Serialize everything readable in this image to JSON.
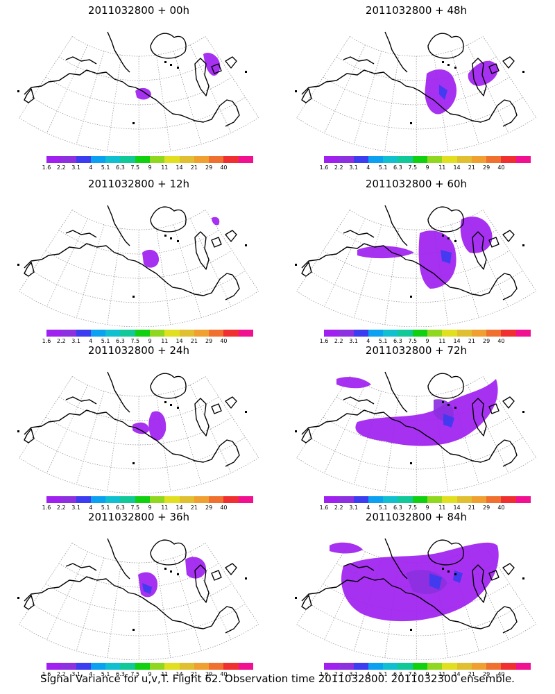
{
  "panels": [
    {
      "title": "2011032800 + 00h"
    },
    {
      "title": "2011032800 + 48h"
    },
    {
      "title": "2011032800 + 12h"
    },
    {
      "title": "2011032800 + 60h"
    },
    {
      "title": "2011032800 + 24h"
    },
    {
      "title": "2011032800 + 72h"
    },
    {
      "title": "2011032800 + 36h"
    },
    {
      "title": "2011032800 + 84h"
    }
  ],
  "colorbar": {
    "labels": [
      "1.6",
      "2.2",
      "3.1",
      "4",
      "5.1",
      "6.3",
      "7.5",
      "9",
      "11",
      "14",
      "21",
      "29",
      "40"
    ],
    "colors": [
      "#a020f0",
      "#8c30e0",
      "#3c3cf0",
      "#0ca0f0",
      "#10c0d0",
      "#10c898",
      "#10d010",
      "#90d820",
      "#e0e020",
      "#e0c030",
      "#f0a030",
      "#f07030",
      "#f03030",
      "#f01090"
    ]
  },
  "caption": "Signal Variance for u,v,T. Flight 62. Observation time 2011032800. 2011032300 ensemble.",
  "colors": {
    "fill_low": "#a020f0",
    "fill_mid": "#8c30e0",
    "fill_high": "#3c3cf0",
    "coast": "#000000",
    "grid": "#999999"
  }
}
